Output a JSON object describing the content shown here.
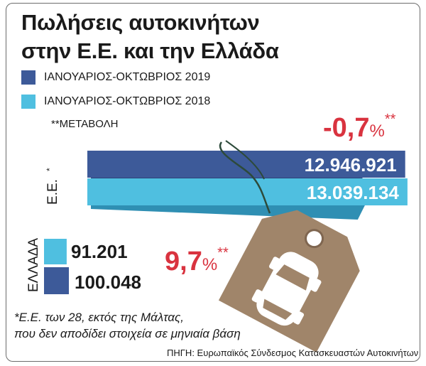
{
  "title_line1": "Πωλήσεις αυτοκινήτων",
  "title_line2": "στην Ε.Ε. και την Ελλάδα",
  "legend": [
    {
      "label": "ΙΑΝΟΥΑΡΙΟΣ-ΟΚΤΩΒΡΙΟΣ 2019",
      "color": "#3d5a99"
    },
    {
      "label": "ΙΑΝΟΥΑΡΙΟΣ-ΟΚΤΩΒΡΙΟΣ 2018",
      "color": "#4fbfe0"
    }
  ],
  "change_note": "**ΜΕΤΑΒΟΛΗ",
  "footnote_line1": "*Ε.Ε. των 28, εκτός της Μάλτας,",
  "footnote_line2": "που δεν αποδίδει στοιχεία σε μηνιαία βάση",
  "source": "ΠΗΓΗ: Ευρωπαϊκός Σύνδεσμος Κατασκευαστών Αυτοκινήτων",
  "colors": {
    "accent_red": "#d9333f",
    "tag": "#a0856a",
    "tag_dark": "#7f6650"
  },
  "chart_data": [
    {
      "type": "bar",
      "orientation": "horizontal",
      "category": "Ε.Ε.",
      "category_marker": "*",
      "series": [
        {
          "name": "ΙΑΝΟΥΑΡΙΟΣ-ΟΚΤΩΒΡΙΟΣ 2019",
          "value": 12946921,
          "label": "12.946.921"
        },
        {
          "name": "ΙΑΝΟΥΑΡΙΟΣ-ΟΚΤΩΒΡΙΟΣ 2018",
          "value": 13039134,
          "label": "13.039.134"
        }
      ],
      "change": {
        "value": "-0,7",
        "percent": "%",
        "marker": "**"
      }
    },
    {
      "type": "bar",
      "orientation": "horizontal",
      "category": "ΕΛΛΑΔΑ",
      "series": [
        {
          "name": "ΙΑΝΟΥΑΡΙΟΣ-ΟΚΤΩΒΡΙΟΣ 2018",
          "value": 91201,
          "label": "91.201"
        },
        {
          "name": "ΙΑΝΟΥΑΡΙΟΣ-ΟΚΤΩΒΡΙΟΣ 2019",
          "value": 100048,
          "label": "100.048"
        }
      ],
      "change": {
        "value": "9,7",
        "percent": "%",
        "marker": "**"
      }
    }
  ]
}
